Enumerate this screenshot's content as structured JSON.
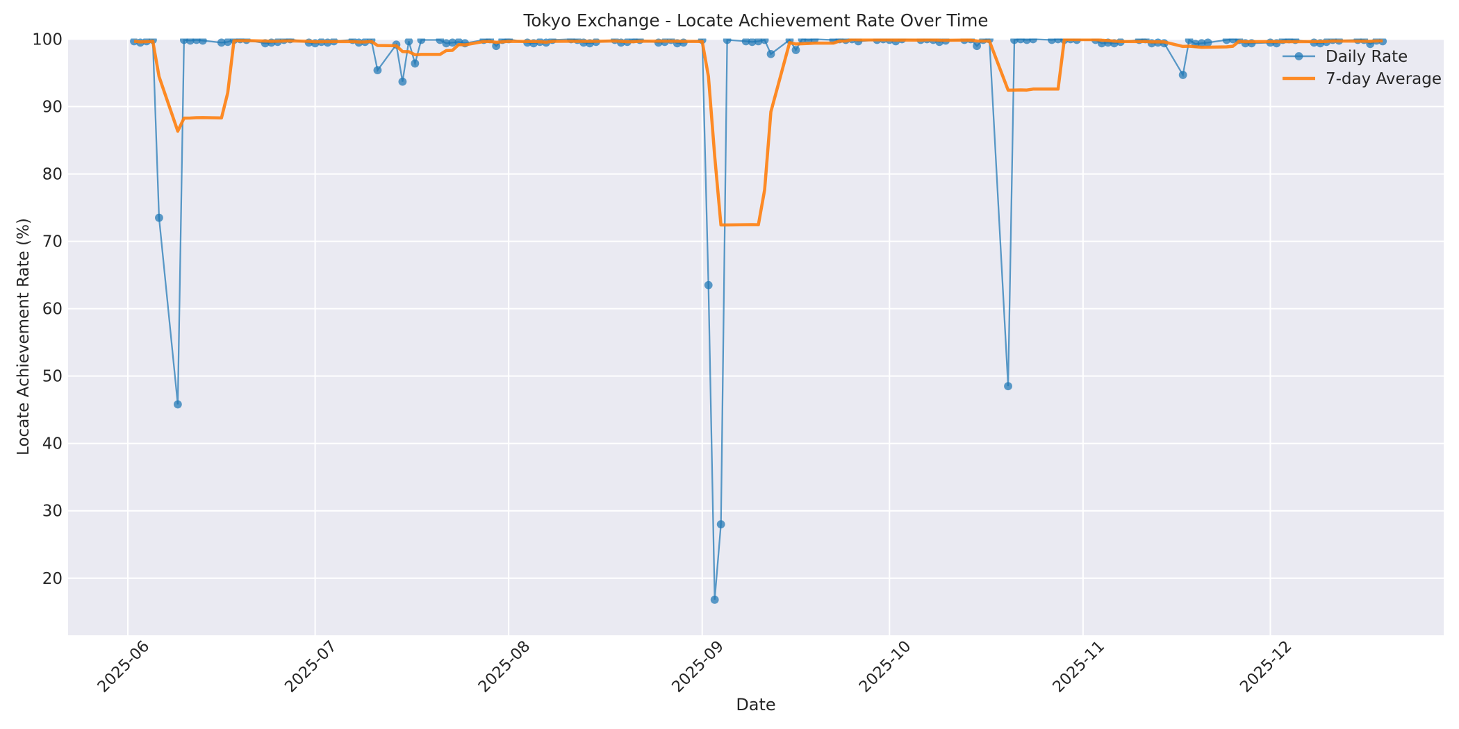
{
  "title": "Tokyo Exchange - Locate Achievement Rate Over Time",
  "xlabel": "Date",
  "ylabel": "Locate Achievement Rate (%)",
  "legend": {
    "daily_label": "Daily Rate",
    "avg_label": "7-day Average"
  },
  "colors": {
    "daily_line": "#1f77b4",
    "avg_line": "#ff7f0e",
    "plot_bg": "#eaeaf2",
    "grid": "#ffffff",
    "text": "#262626"
  },
  "chart_data": {
    "type": "line",
    "title": "Tokyo Exchange - Locate Achievement Rate Over Time",
    "xlabel": "Date",
    "ylabel": "Locate Achievement Rate (%)",
    "x_tick_labels": [
      "2025-06",
      "2025-07",
      "2025-08",
      "2025-09",
      "2025-10",
      "2025-11",
      "2025-12"
    ],
    "y_ticks": [
      20,
      30,
      40,
      50,
      60,
      70,
      80,
      90,
      100
    ],
    "ylim": [
      11.5,
      100.1
    ],
    "grid": true,
    "legend_position": "upper right",
    "series": [
      {
        "name": "Daily Rate",
        "dates": [
          "2025-06-02",
          "2025-06-03",
          "2025-06-04",
          "2025-06-05",
          "2025-06-06",
          "2025-06-09",
          "2025-06-10",
          "2025-06-11",
          "2025-06-12",
          "2025-06-13",
          "2025-06-16",
          "2025-06-17",
          "2025-06-18",
          "2025-06-19",
          "2025-06-20",
          "2025-06-23",
          "2025-06-24",
          "2025-06-25",
          "2025-06-26",
          "2025-06-27",
          "2025-06-30",
          "2025-07-01",
          "2025-07-02",
          "2025-07-03",
          "2025-07-04",
          "2025-07-07",
          "2025-07-08",
          "2025-07-09",
          "2025-07-10",
          "2025-07-11",
          "2025-07-14",
          "2025-07-15",
          "2025-07-16",
          "2025-07-17",
          "2025-07-18",
          "2025-07-21",
          "2025-07-22",
          "2025-07-23",
          "2025-07-24",
          "2025-07-25",
          "2025-07-28",
          "2025-07-29",
          "2025-07-30",
          "2025-07-31",
          "2025-08-01",
          "2025-08-04",
          "2025-08-05",
          "2025-08-06",
          "2025-08-07",
          "2025-08-08",
          "2025-08-11",
          "2025-08-12",
          "2025-08-13",
          "2025-08-14",
          "2025-08-15",
          "2025-08-18",
          "2025-08-19",
          "2025-08-20",
          "2025-08-21",
          "2025-08-22",
          "2025-08-25",
          "2025-08-26",
          "2025-08-27",
          "2025-08-28",
          "2025-08-29",
          "2025-09-01",
          "2025-09-02",
          "2025-09-03",
          "2025-09-04",
          "2025-09-05",
          "2025-09-08",
          "2025-09-09",
          "2025-09-10",
          "2025-09-11",
          "2025-09-12",
          "2025-09-15",
          "2025-09-16",
          "2025-09-17",
          "2025-09-18",
          "2025-09-19",
          "2025-09-22",
          "2025-09-23",
          "2025-09-24",
          "2025-09-25",
          "2025-09-26",
          "2025-09-29",
          "2025-09-30",
          "2025-10-01",
          "2025-10-02",
          "2025-10-03",
          "2025-10-06",
          "2025-10-07",
          "2025-10-08",
          "2025-10-09",
          "2025-10-10",
          "2025-10-13",
          "2025-10-14",
          "2025-10-15",
          "2025-10-16",
          "2025-10-17",
          "2025-10-20",
          "2025-10-21",
          "2025-10-22",
          "2025-10-23",
          "2025-10-24",
          "2025-10-27",
          "2025-10-28",
          "2025-10-29",
          "2025-10-30",
          "2025-10-31",
          "2025-11-03",
          "2025-11-04",
          "2025-11-05",
          "2025-11-06",
          "2025-11-07",
          "2025-11-10",
          "2025-11-11",
          "2025-11-12",
          "2025-11-13",
          "2025-11-14",
          "2025-11-17",
          "2025-11-18",
          "2025-11-19",
          "2025-11-20",
          "2025-11-21",
          "2025-11-24",
          "2025-11-25",
          "2025-11-26",
          "2025-11-27",
          "2025-11-28",
          "2025-12-01",
          "2025-12-02",
          "2025-12-03",
          "2025-12-04",
          "2025-12-05",
          "2025-12-08",
          "2025-12-09",
          "2025-12-10",
          "2025-12-11",
          "2025-12-12",
          "2025-12-15",
          "2025-12-16",
          "2025-12-17",
          "2025-12-18",
          "2025-12-19"
        ],
        "values": [
          99.7,
          99.5,
          99.7,
          99.9,
          73.5,
          45.8,
          99.9,
          99.8,
          99.9,
          99.8,
          99.5,
          99.6,
          99.9,
          100,
          99.9,
          99.4,
          99.5,
          99.6,
          99.9,
          100,
          99.5,
          99.4,
          99.6,
          99.5,
          99.7,
          99.9,
          99.5,
          99.6,
          99.9,
          95.4,
          99.2,
          93.7,
          99.7,
          96.4,
          99.9,
          99.9,
          99.4,
          99.5,
          99.6,
          99.4,
          99.9,
          100,
          99.0,
          99.9,
          100,
          99.5,
          99.4,
          99.6,
          99.5,
          99.9,
          100,
          99.9,
          99.5,
          99.4,
          99.6,
          99.9,
          99.5,
          99.6,
          100,
          99.9,
          99.5,
          99.6,
          99.9,
          99.4,
          99.5,
          99.9,
          63.5,
          16.8,
          28.0,
          99.9,
          99.7,
          99.6,
          99.7,
          99.9,
          97.8,
          99.9,
          98.4,
          100,
          99.9,
          100,
          99.9,
          100,
          99.9,
          100,
          99.7,
          99.9,
          100,
          99.9,
          99.7,
          100,
          99.9,
          100,
          99.9,
          99.6,
          99.8,
          99.9,
          100,
          99.0,
          99.9,
          100,
          48.5,
          99.9,
          100,
          99.9,
          100,
          99.9,
          100,
          99.9,
          100,
          99.9,
          99.9,
          99.4,
          99.5,
          99.4,
          99.6,
          99.9,
          100,
          99.4,
          99.5,
          99.4,
          94.7,
          99.9,
          99.3,
          99.4,
          99.5,
          99.9,
          100,
          99.9,
          99.4,
          99.4,
          99.5,
          99.4,
          99.9,
          100,
          99.9,
          99.5,
          99.4,
          99.6,
          99.9,
          99.8,
          99.9,
          99.9,
          99.3,
          99.8,
          99.7
        ]
      },
      {
        "name": "7-day Average",
        "derived_from": "Daily Rate",
        "derivation": "rolling_mean",
        "window": 7,
        "min_periods": 1
      }
    ]
  }
}
